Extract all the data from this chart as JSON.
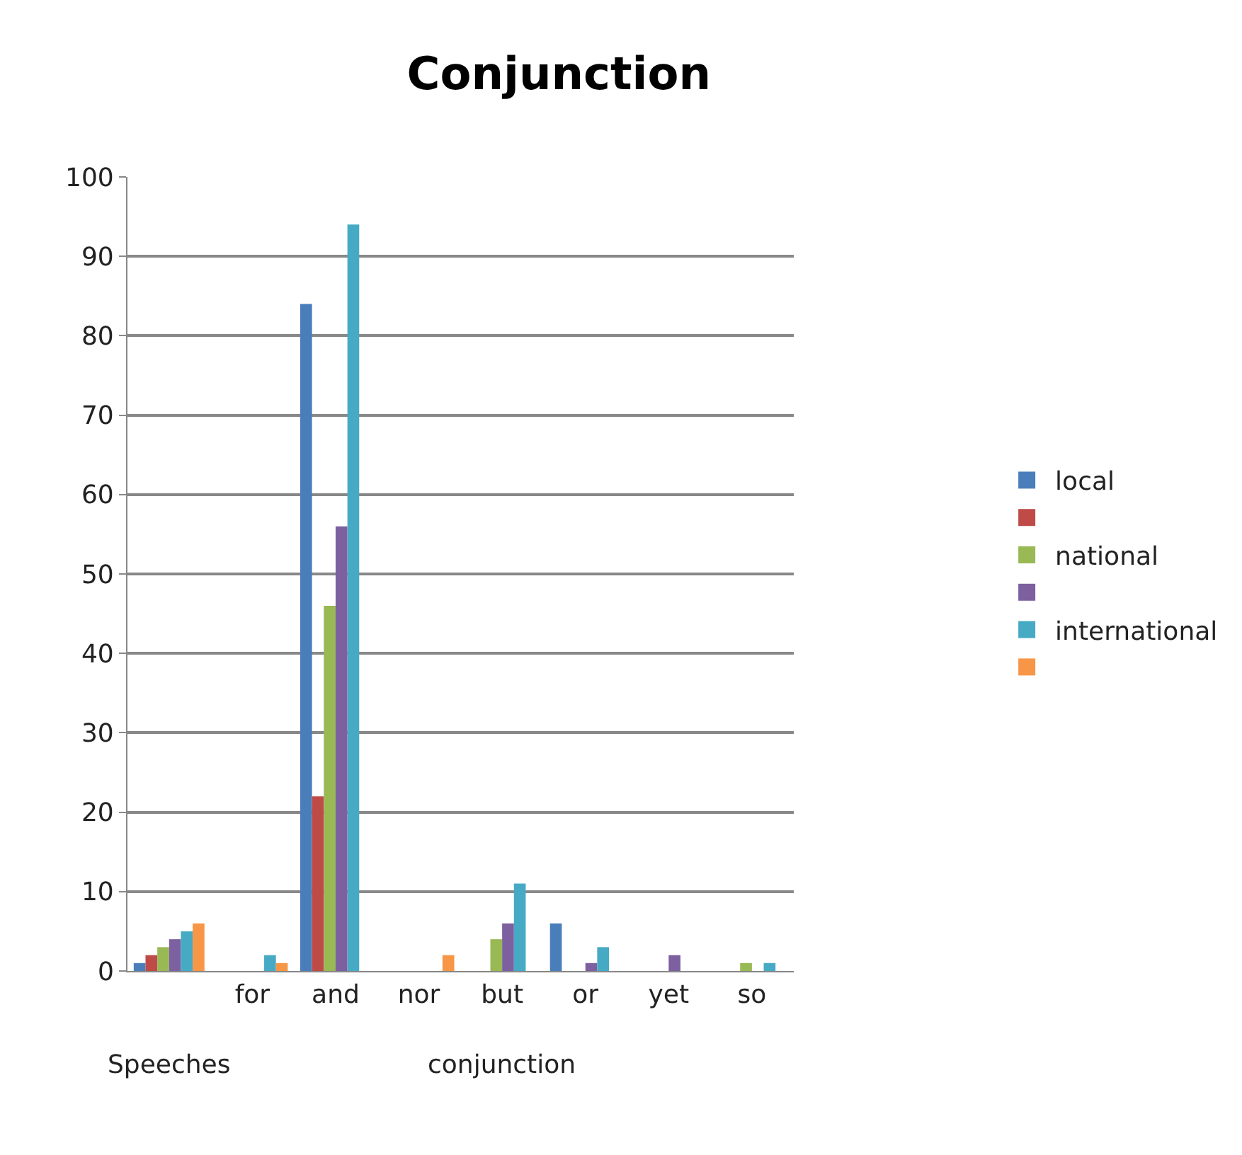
{
  "chart_data": {
    "type": "bar",
    "title": "Conjunction",
    "categories": [
      null,
      "for",
      "and",
      "nor",
      "but",
      "or",
      "yet",
      "so"
    ],
    "series": [
      {
        "name": "local",
        "color": "#4a7ebb",
        "values": [
          1,
          0,
          84,
          0,
          0,
          6,
          0,
          0
        ]
      },
      {
        "color": "#be4b48",
        "values": [
          2,
          0,
          22,
          0,
          0,
          0,
          0,
          0
        ]
      },
      {
        "name": "national",
        "color": "#98b954",
        "values": [
          3,
          0,
          46,
          0,
          4,
          0,
          0,
          1
        ]
      },
      {
        "color": "#7d60a0",
        "values": [
          4,
          0,
          56,
          0,
          6,
          1,
          2,
          0
        ]
      },
      {
        "name": "international",
        "color": "#46aac5",
        "values": [
          5,
          2,
          94,
          0,
          11,
          3,
          0,
          1
        ]
      },
      {
        "color": "#f79646",
        "values": [
          6,
          1,
          0,
          2,
          0,
          0,
          0,
          0
        ]
      }
    ],
    "ylim": [
      0,
      100
    ],
    "yticks": [
      0,
      10,
      20,
      30,
      40,
      50,
      60,
      70,
      80,
      90,
      100
    ],
    "grid": "y",
    "legend": "right",
    "annotations": [
      "Speeches",
      "conjunction"
    ]
  }
}
